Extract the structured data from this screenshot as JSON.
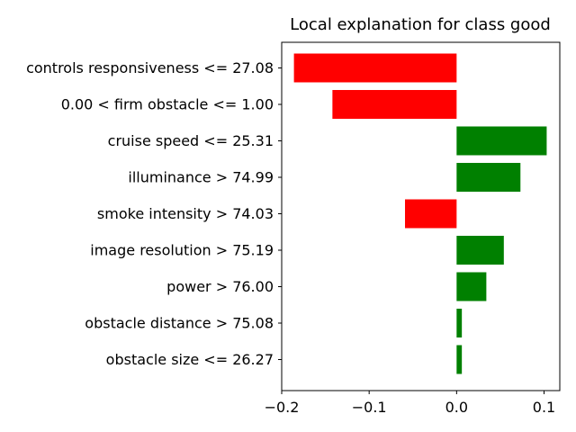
{
  "chart_data": {
    "type": "bar",
    "orientation": "horizontal",
    "title": "Local explanation for class good",
    "xlabel": "",
    "ylabel": "",
    "categories": [
      "controls responsiveness <= 27.08",
      "0.00 < firm obstacle <= 1.00",
      "cruise speed <= 25.31",
      "illuminance > 74.99",
      "smoke intensity > 74.03",
      "image resolution > 75.19",
      "power > 76.00",
      "obstacle distance > 75.08",
      "obstacle size <= 26.27"
    ],
    "values": [
      -0.186,
      -0.142,
      0.103,
      0.073,
      -0.059,
      0.054,
      0.034,
      0.006,
      0.006
    ],
    "xlim": [
      -0.2,
      0.118
    ],
    "xticks": [
      -0.2,
      -0.1,
      0.0,
      0.1
    ],
    "xtick_labels": [
      "−0.2",
      "−0.1",
      "0.0",
      "0.1"
    ],
    "colors": {
      "positive": "#008000",
      "negative": "#ff0000"
    },
    "grid": false,
    "legend": "none"
  }
}
